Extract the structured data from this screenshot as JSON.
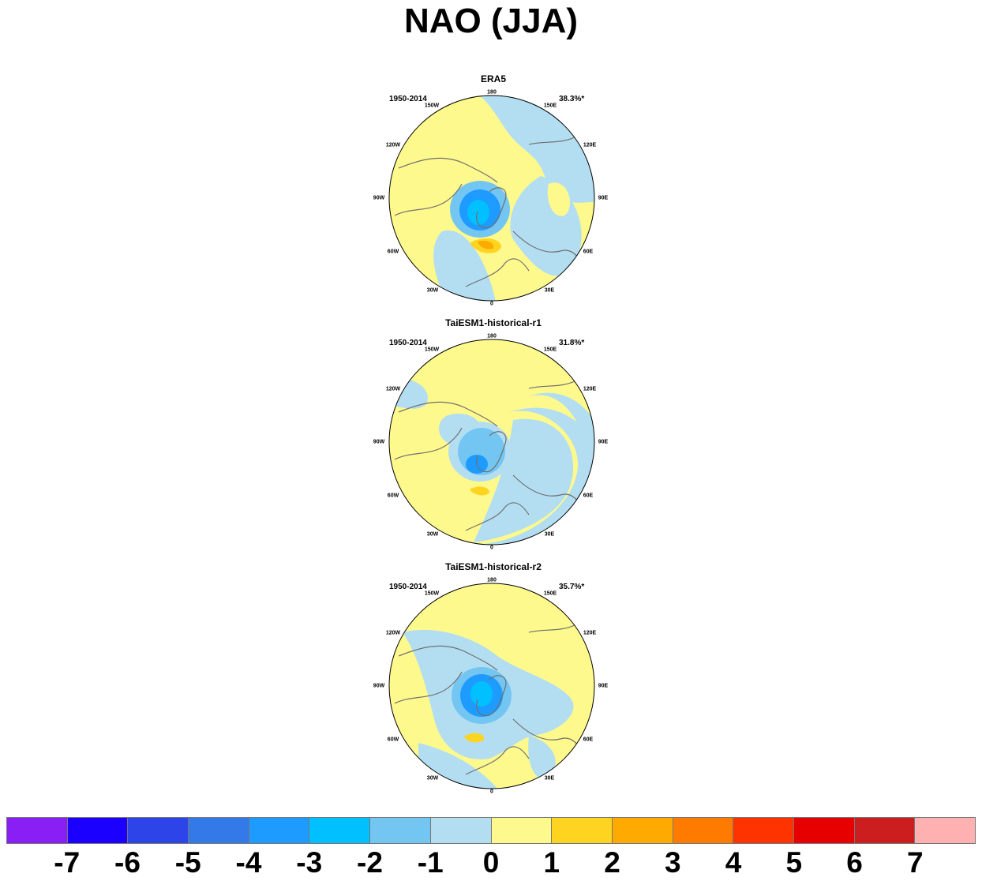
{
  "title": "NAO (JJA)",
  "panels": [
    {
      "title": "ERA5",
      "period": "1950-2014",
      "variance": "38.3%*"
    },
    {
      "title": "TaiESM1-historical-r1",
      "period": "1950-2014",
      "variance": "31.8%*"
    },
    {
      "title": "TaiESM1-historical-r2",
      "period": "1950-2014",
      "variance": "35.7%*"
    }
  ],
  "longitude_labels": [
    "180",
    "150E",
    "120E",
    "90E",
    "60E",
    "30E",
    "0",
    "30W",
    "60W",
    "90W",
    "120W",
    "150W"
  ],
  "colorbar": {
    "colors": [
      "#8a1ff5",
      "#1c00ff",
      "#2d45e8",
      "#3479e8",
      "#1e9bff",
      "#00c0ff",
      "#74c6f2",
      "#b3def2",
      "#fef98c",
      "#ffd420",
      "#ffaa00",
      "#ff7b00",
      "#ff3300",
      "#e60000",
      "#cc1e1e",
      "#ffb0b0"
    ],
    "labels": [
      "-7",
      "-6",
      "-5",
      "-4",
      "-3",
      "-2",
      "-1",
      "0",
      "1",
      "2",
      "3",
      "4",
      "5",
      "6",
      "7"
    ]
  },
  "colors": {
    "neutral_neg": "#b3def2",
    "neutral_pos": "#fef98c",
    "coast": "#707070"
  }
}
